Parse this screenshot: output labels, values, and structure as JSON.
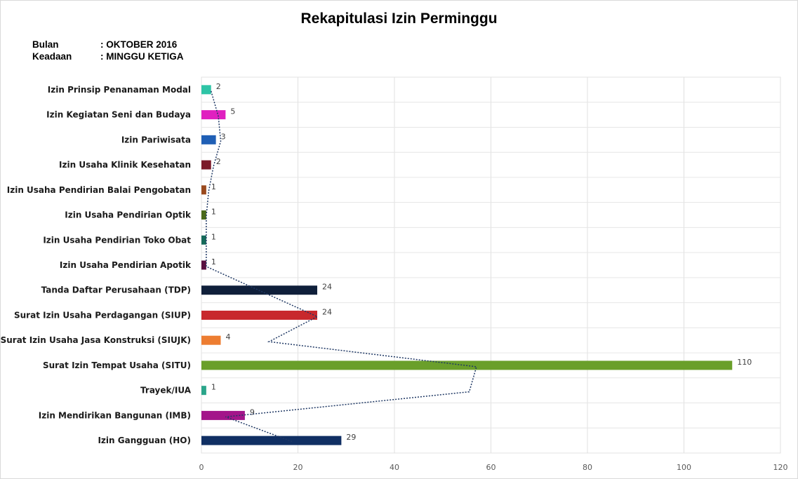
{
  "header": {
    "title": "Rekapitulasi Izin Perminggu",
    "bulan_label": "Bulan",
    "bulan_value": ": OKTOBER 2016",
    "keadaan_label": "Keadaan",
    "keadaan_value": ": MINGGU KETIGA"
  },
  "chart_data": {
    "type": "bar",
    "orientation": "horizontal",
    "title": "Rekapitulasi Izin Perminggu",
    "categories": [
      "Izin Prinsip Penanaman Modal",
      "Izin Kegiatan Seni dan Budaya",
      "Izin Pariwisata",
      "Izin Usaha Klinik Kesehatan",
      "Izin Usaha Pendirian Balai Pengobatan",
      "Izin Usaha Pendirian Optik",
      "Izin Usaha Pendirian Toko Obat",
      "Izin Usaha Pendirian Apotik",
      "Tanda Daftar Perusahaan (TDP)",
      "Surat Izin Usaha Perdagangan (SIUP)",
      "Surat Izin Usaha Jasa Konstruksi (SIUJK)",
      "Surat Izin Tempat Usaha (SITU)",
      "Trayek/IUA",
      "Izin Mendirikan Bangunan (IMB)",
      "Izin Gangguan (HO)"
    ],
    "values": [
      2,
      5,
      3,
      2,
      1,
      1,
      1,
      1,
      24,
      24,
      4,
      110,
      1,
      9,
      29
    ],
    "colors": [
      "#2ec4a6",
      "#e020c0",
      "#1f5fb5",
      "#7b1a2a",
      "#9a4a1e",
      "#4a6a1a",
      "#156a5a",
      "#5a1040",
      "#0f1f3a",
      "#c8282d",
      "#ed7d31",
      "#6a9f2a",
      "#2aa58a",
      "#a3158a",
      "#102f63"
    ],
    "xlim": [
      0,
      120
    ],
    "xticks": [
      0,
      20,
      40,
      60,
      80,
      100,
      120
    ],
    "grid": true,
    "xlabel": "",
    "ylabel": "",
    "trendline": {
      "style": "dotted",
      "color": "#1f3864"
    }
  }
}
